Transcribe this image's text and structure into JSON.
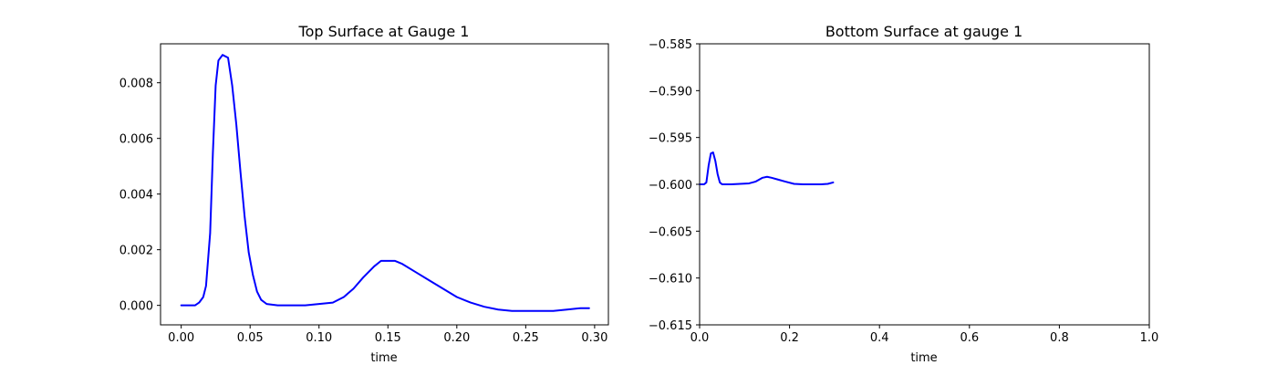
{
  "chart_data": [
    {
      "type": "line",
      "title": "Top Surface at Gauge 1",
      "xlabel": "time",
      "ylabel": "",
      "xlim": [
        -0.015,
        0.31
      ],
      "ylim": [
        -0.0007,
        0.0094
      ],
      "xticks": [
        0.0,
        0.05,
        0.1,
        0.15,
        0.2,
        0.25,
        0.3
      ],
      "xtick_labels": [
        "0.00",
        "0.05",
        "0.10",
        "0.15",
        "0.20",
        "0.25",
        "0.30"
      ],
      "yticks": [
        0.0,
        0.002,
        0.004,
        0.006,
        0.008
      ],
      "ytick_labels": [
        "0.000",
        "0.002",
        "0.004",
        "0.006",
        "0.008"
      ],
      "grid": false,
      "series": [
        {
          "color": "#0000ff",
          "x": [
            0.0,
            0.005,
            0.01,
            0.013,
            0.016,
            0.018,
            0.021,
            0.023,
            0.025,
            0.027,
            0.03,
            0.034,
            0.037,
            0.04,
            0.043,
            0.046,
            0.049,
            0.052,
            0.055,
            0.058,
            0.062,
            0.07,
            0.08,
            0.09,
            0.1,
            0.11,
            0.118,
            0.125,
            0.132,
            0.14,
            0.145,
            0.15,
            0.155,
            0.16,
            0.17,
            0.18,
            0.19,
            0.2,
            0.21,
            0.22,
            0.23,
            0.24,
            0.25,
            0.26,
            0.27,
            0.28,
            0.29,
            0.296
          ],
          "y": [
            0.0,
            0.0,
            0.0,
            0.0001,
            0.0003,
            0.0007,
            0.0026,
            0.0055,
            0.0079,
            0.0088,
            0.009,
            0.0089,
            0.0079,
            0.0065,
            0.0048,
            0.0032,
            0.0019,
            0.0011,
            0.0005,
            0.0002,
            5e-05,
            0.0,
            0.0,
            0.0,
            5e-05,
            0.0001,
            0.0003,
            0.0006,
            0.001,
            0.0014,
            0.0016,
            0.0016,
            0.0016,
            0.0015,
            0.0012,
            0.0009,
            0.0006,
            0.0003,
            0.0001,
            -5e-05,
            -0.00015,
            -0.0002,
            -0.0002,
            -0.0002,
            -0.0002,
            -0.00015,
            -0.0001,
            -0.0001
          ]
        }
      ]
    },
    {
      "type": "line",
      "title": "Bottom Surface at gauge 1",
      "xlabel": "time",
      "ylabel": "",
      "xlim": [
        0.0,
        1.0
      ],
      "ylim": [
        -0.615,
        -0.585
      ],
      "xticks": [
        0.0,
        0.2,
        0.4,
        0.6,
        0.8,
        1.0
      ],
      "xtick_labels": [
        "0.0",
        "0.2",
        "0.4",
        "0.6",
        "0.8",
        "1.0"
      ],
      "yticks": [
        -0.615,
        -0.61,
        -0.605,
        -0.6,
        -0.595,
        -0.59,
        -0.585
      ],
      "ytick_labels": [
        "−0.615",
        "−0.610",
        "−0.605",
        "−0.600",
        "−0.595",
        "−0.590",
        "−0.585"
      ],
      "grid": false,
      "series": [
        {
          "color": "#0000ff",
          "x": [
            0.0,
            0.01,
            0.015,
            0.02,
            0.025,
            0.03,
            0.035,
            0.04,
            0.045,
            0.05,
            0.055,
            0.06,
            0.07,
            0.09,
            0.11,
            0.125,
            0.14,
            0.15,
            0.16,
            0.175,
            0.19,
            0.21,
            0.23,
            0.25,
            0.27,
            0.285,
            0.297
          ],
          "y": [
            -0.6,
            -0.6,
            -0.5998,
            -0.598,
            -0.5967,
            -0.5966,
            -0.5975,
            -0.5989,
            -0.5998,
            -0.6,
            -0.6,
            -0.6,
            -0.6,
            -0.59995,
            -0.5999,
            -0.5997,
            -0.5993,
            -0.5992,
            -0.5993,
            -0.5995,
            -0.5997,
            -0.59995,
            -0.6,
            -0.6,
            -0.6,
            -0.59995,
            -0.5998
          ]
        }
      ]
    }
  ]
}
